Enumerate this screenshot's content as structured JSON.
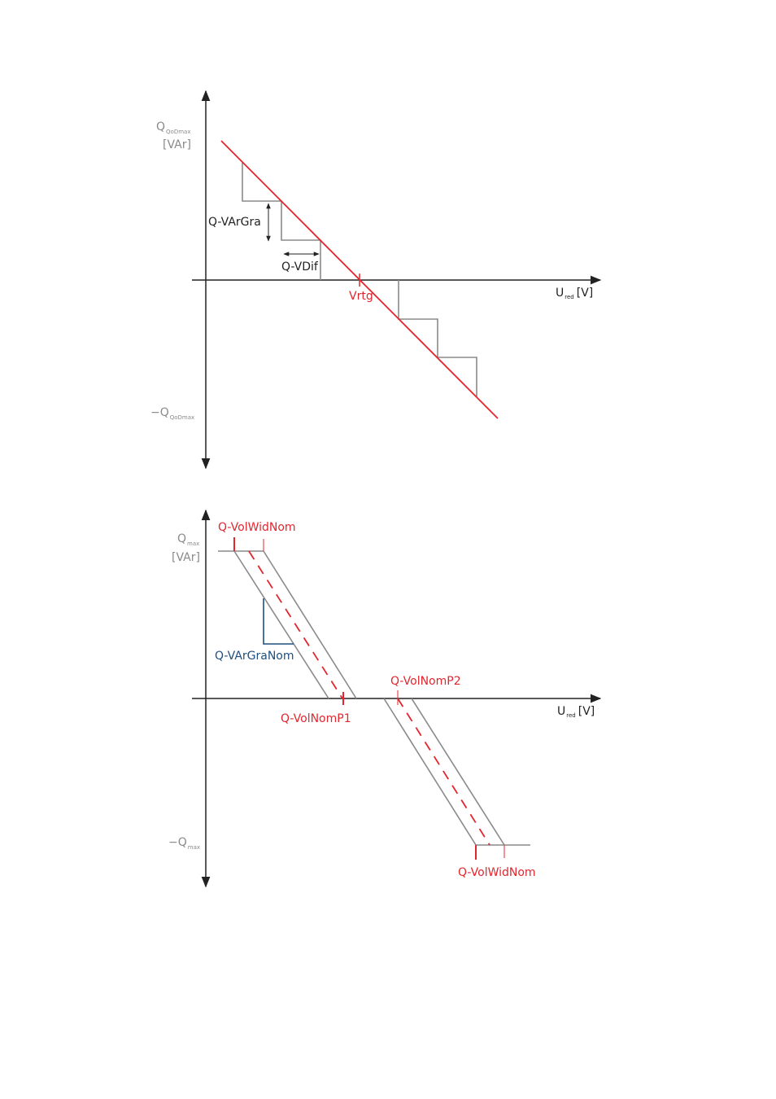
{
  "diagram1": {
    "y_axis_label_main": "Q",
    "y_axis_label_sub": "QoDmax",
    "y_axis_unit": "[VAr]",
    "y_axis_neg_main": "−Q",
    "y_axis_neg_sub": "QoDmax",
    "x_axis_label_main": "U",
    "x_axis_label_sub": "red",
    "x_axis_unit": "[V]",
    "label_step_height": "Q-VArGra",
    "label_step_width": "Q-VDif",
    "label_rated_voltage": "Vrtg"
  },
  "diagram2": {
    "y_axis_label_main": "Q",
    "y_axis_label_sub": "max",
    "y_axis_unit": "[VAr]",
    "y_axis_neg_main": "−Q",
    "y_axis_neg_sub": "max",
    "x_axis_label_main": "U",
    "x_axis_label_sub": "red",
    "x_axis_unit": "[V]",
    "label_width_top": "Q-VolWidNom",
    "label_gradient": "Q-VArGraNom",
    "label_point1": "Q-VolNomP1",
    "label_point2": "Q-VolNomP2",
    "label_width_bottom": "Q-VolWidNom"
  },
  "colors": {
    "characteristic": "#e3262e",
    "gradient": "#1f4f7f",
    "steps": "#8a8a8a",
    "axes": "#222222"
  }
}
